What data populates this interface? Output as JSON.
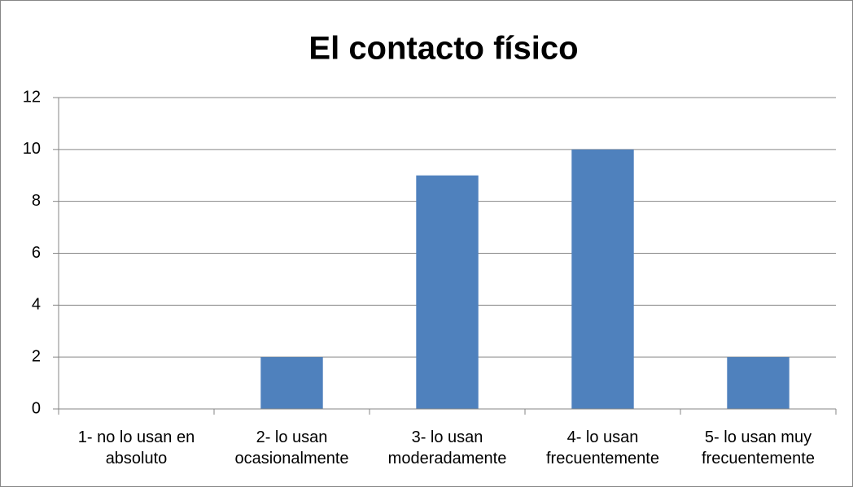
{
  "chart_data": {
    "type": "bar",
    "title": "El contacto físico",
    "categories": [
      "1- no lo usan en absoluto",
      "2- lo usan ocasionalmente",
      "3- lo usan moderadamente",
      "4- lo usan frecuentemente",
      "5- lo usan muy frecuentemente"
    ],
    "values": [
      0,
      2,
      9,
      10,
      2
    ],
    "color": "#4f81bd",
    "ylim": [
      0,
      12
    ],
    "yticks": [
      0,
      2,
      4,
      6,
      8,
      10,
      12
    ],
    "grid": true
  }
}
